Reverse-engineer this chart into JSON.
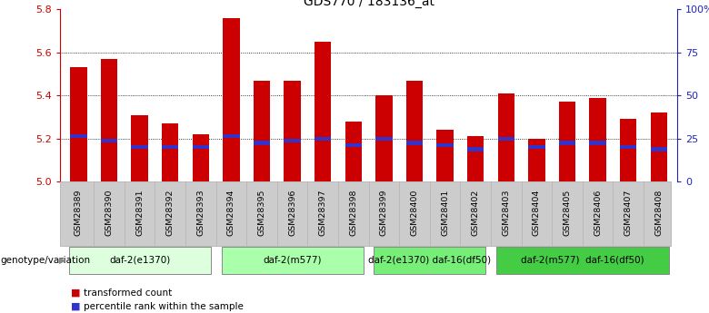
{
  "title": "GDS770 / 183136_at",
  "samples": [
    "GSM28389",
    "GSM28390",
    "GSM28391",
    "GSM28392",
    "GSM28393",
    "GSM28394",
    "GSM28395",
    "GSM28396",
    "GSM28397",
    "GSM28398",
    "GSM28399",
    "GSM28400",
    "GSM28401",
    "GSM28402",
    "GSM28403",
    "GSM28404",
    "GSM28405",
    "GSM28406",
    "GSM28407",
    "GSM28408"
  ],
  "transformed_counts": [
    5.53,
    5.57,
    5.31,
    5.27,
    5.22,
    5.76,
    5.47,
    5.47,
    5.65,
    5.28,
    5.4,
    5.47,
    5.24,
    5.21,
    5.41,
    5.2,
    5.37,
    5.39,
    5.29,
    5.32
  ],
  "percentile_ranks": [
    5.21,
    5.19,
    5.16,
    5.16,
    5.16,
    5.21,
    5.18,
    5.19,
    5.2,
    5.17,
    5.2,
    5.18,
    5.17,
    5.15,
    5.2,
    5.16,
    5.18,
    5.18,
    5.16,
    5.15
  ],
  "ylim": [
    5.0,
    5.8
  ],
  "yticks": [
    5.0,
    5.2,
    5.4,
    5.6,
    5.8
  ],
  "right_yticks": [
    0,
    25,
    50,
    75,
    100
  ],
  "right_ytick_labels": [
    "0",
    "25",
    "50",
    "75",
    "100%"
  ],
  "bar_color": "#cc0000",
  "blue_color": "#3333cc",
  "groups": [
    {
      "label": "daf-2(e1370)",
      "start": 0,
      "end": 4,
      "color": "#ddffdd"
    },
    {
      "label": "daf-2(m577)",
      "start": 5,
      "end": 9,
      "color": "#aaffaa"
    },
    {
      "label": "daf-2(e1370) daf-16(df50)",
      "start": 10,
      "end": 13,
      "color": "#77ee77"
    },
    {
      "label": "daf-2(m577)  daf-16(df50)",
      "start": 14,
      "end": 19,
      "color": "#44cc44"
    }
  ],
  "legend_items": [
    {
      "label": "transformed count",
      "color": "#cc0000"
    },
    {
      "label": "percentile rank within the sample",
      "color": "#3333cc"
    }
  ],
  "axis_color_left": "#cc0000",
  "axis_color_right": "#2222bb",
  "bar_width": 0.55,
  "sample_box_color": "#cccccc",
  "genotype_label": "genotype/variation"
}
